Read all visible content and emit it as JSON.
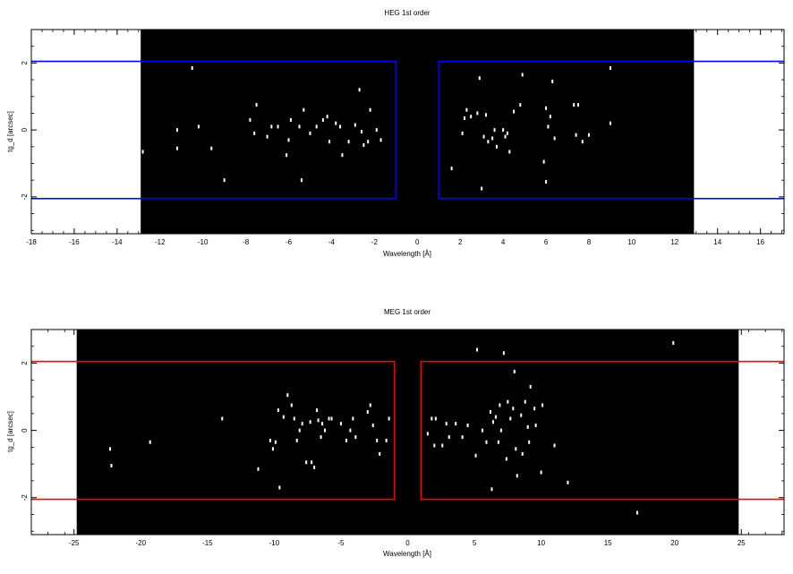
{
  "chart_data": [
    {
      "type": "scatter",
      "title": "HEG 1st order",
      "xlabel": "Wavelength [Å]",
      "ylabel": "tg_d [arcsec]",
      "xlim": [
        -18,
        17.1
      ],
      "ylim": [
        -3.1,
        3.0
      ],
      "data_region_x": [
        -12.9,
        12.9
      ],
      "xticks": [
        "-18",
        "-16",
        "-14",
        "-12",
        "-10",
        "-8",
        "-6",
        "-4",
        "-2",
        "0",
        "2",
        "4",
        "6",
        "8",
        "10",
        "12",
        "14",
        "16"
      ],
      "yticks": [
        "-2",
        "0",
        "2"
      ],
      "regions": [
        {
          "x": [
            -30,
            -1.0
          ],
          "y": [
            -2.05,
            2.05
          ],
          "color": "#0000ff"
        },
        {
          "x": [
            1.0,
            30
          ],
          "y": [
            -2.05,
            2.05
          ],
          "color": "#0000ff"
        }
      ],
      "point_color": "#ffffff",
      "points": [
        [
          -12.8,
          -0.65
        ],
        [
          -11.2,
          0.0
        ],
        [
          -11.2,
          -0.55
        ],
        [
          -10.5,
          1.85
        ],
        [
          -10.2,
          0.1
        ],
        [
          -9.6,
          -0.55
        ],
        [
          -9.0,
          -1.5
        ],
        [
          -7.8,
          0.3
        ],
        [
          -7.6,
          -0.1
        ],
        [
          -7.5,
          0.75
        ],
        [
          -7.0,
          -0.2
        ],
        [
          -6.8,
          0.1
        ],
        [
          -6.5,
          0.1
        ],
        [
          -6.1,
          -0.75
        ],
        [
          -6.0,
          -0.3
        ],
        [
          -5.9,
          0.3
        ],
        [
          -5.5,
          0.1
        ],
        [
          -5.4,
          -1.5
        ],
        [
          -5.3,
          0.6
        ],
        [
          -5.0,
          -0.1
        ],
        [
          -4.7,
          0.1
        ],
        [
          -4.4,
          0.3
        ],
        [
          -4.2,
          0.4
        ],
        [
          -4.1,
          -0.35
        ],
        [
          -3.8,
          0.2
        ],
        [
          -3.6,
          0.1
        ],
        [
          -3.5,
          -0.75
        ],
        [
          -3.2,
          -0.35
        ],
        [
          -2.9,
          0.15
        ],
        [
          -2.7,
          1.2
        ],
        [
          -2.6,
          -0.05
        ],
        [
          -2.5,
          -0.45
        ],
        [
          -2.3,
          -0.35
        ],
        [
          -2.2,
          0.6
        ],
        [
          -1.9,
          0.0
        ],
        [
          -1.7,
          -0.3
        ],
        [
          1.6,
          -1.15
        ],
        [
          2.1,
          -0.1
        ],
        [
          2.2,
          0.35
        ],
        [
          2.3,
          0.6
        ],
        [
          2.5,
          0.4
        ],
        [
          2.8,
          0.5
        ],
        [
          2.9,
          1.55
        ],
        [
          3.0,
          -1.75
        ],
        [
          3.1,
          -0.2
        ],
        [
          3.2,
          0.45
        ],
        [
          3.3,
          -0.35
        ],
        [
          3.5,
          -0.25
        ],
        [
          3.6,
          0.0
        ],
        [
          3.7,
          -0.5
        ],
        [
          4.0,
          0.0
        ],
        [
          4.1,
          -0.2
        ],
        [
          4.2,
          -0.1
        ],
        [
          4.3,
          -0.65
        ],
        [
          4.5,
          0.55
        ],
        [
          4.8,
          0.75
        ],
        [
          4.9,
          1.65
        ],
        [
          5.9,
          -0.95
        ],
        [
          6.0,
          0.65
        ],
        [
          6.0,
          -1.55
        ],
        [
          6.1,
          0.1
        ],
        [
          6.2,
          0.4
        ],
        [
          6.3,
          1.45
        ],
        [
          6.4,
          -0.25
        ],
        [
          7.3,
          0.75
        ],
        [
          7.4,
          -0.15
        ],
        [
          7.5,
          0.75
        ],
        [
          7.7,
          -0.35
        ],
        [
          8.0,
          -0.15
        ],
        [
          9.0,
          1.85
        ],
        [
          9.0,
          0.2
        ]
      ]
    },
    {
      "type": "scatter",
      "title": "MEG 1st order",
      "xlabel": "Wavelength [Å]",
      "ylabel": "tg_d [arcsec]",
      "xlim": [
        -28.2,
        28.2
      ],
      "ylim": [
        -3.1,
        3.0
      ],
      "data_region_x": [
        -24.8,
        24.8
      ],
      "xticks": [
        "-25",
        "-20",
        "-15",
        "-10",
        "-5",
        "0",
        "5",
        "10",
        "15",
        "20",
        "25"
      ],
      "yticks": [
        "-2",
        "0",
        "2"
      ],
      "regions": [
        {
          "x": [
            -40,
            -1.0
          ],
          "y": [
            -2.05,
            2.05
          ],
          "color": "#ff0000"
        },
        {
          "x": [
            1.0,
            40
          ],
          "y": [
            -2.05,
            2.05
          ],
          "color": "#ff0000"
        }
      ],
      "point_color": "#ffffff",
      "points": [
        [
          -22.3,
          -0.55
        ],
        [
          -22.2,
          -1.05
        ],
        [
          -19.3,
          -0.35
        ],
        [
          -13.9,
          0.35
        ],
        [
          -11.2,
          -1.15
        ],
        [
          -10.3,
          -0.3
        ],
        [
          -10.1,
          -0.55
        ],
        [
          -9.9,
          -0.35
        ],
        [
          -9.7,
          0.6
        ],
        [
          -9.6,
          -1.7
        ],
        [
          -9.3,
          0.4
        ],
        [
          -9.0,
          1.05
        ],
        [
          -8.7,
          0.75
        ],
        [
          -8.5,
          0.35
        ],
        [
          -8.3,
          -0.3
        ],
        [
          -8.1,
          0.0
        ],
        [
          -7.9,
          0.2
        ],
        [
          -7.6,
          -0.95
        ],
        [
          -7.3,
          0.25
        ],
        [
          -7.2,
          -0.95
        ],
        [
          -7.0,
          -1.1
        ],
        [
          -6.8,
          0.6
        ],
        [
          -6.7,
          0.3
        ],
        [
          -6.5,
          -0.2
        ],
        [
          -6.4,
          0.2
        ],
        [
          -6.2,
          0.0
        ],
        [
          -5.9,
          0.35
        ],
        [
          -5.7,
          0.35
        ],
        [
          -5.0,
          0.2
        ],
        [
          -4.6,
          -0.3
        ],
        [
          -4.3,
          0.0
        ],
        [
          -4.1,
          0.35
        ],
        [
          -3.9,
          -0.2
        ],
        [
          -3.0,
          0.55
        ],
        [
          -2.8,
          0.75
        ],
        [
          -2.6,
          0.15
        ],
        [
          -2.3,
          -0.3
        ],
        [
          -2.1,
          -0.7
        ],
        [
          -1.6,
          -0.3
        ],
        [
          -1.4,
          0.35
        ],
        [
          1.5,
          -0.1
        ],
        [
          1.8,
          0.35
        ],
        [
          2.0,
          -0.45
        ],
        [
          2.1,
          0.35
        ],
        [
          2.6,
          -0.45
        ],
        [
          2.9,
          0.2
        ],
        [
          3.1,
          -0.2
        ],
        [
          3.6,
          0.2
        ],
        [
          4.1,
          -0.2
        ],
        [
          4.5,
          0.15
        ],
        [
          5.1,
          -0.75
        ],
        [
          5.2,
          2.4
        ],
        [
          5.6,
          0.0
        ],
        [
          5.9,
          -0.35
        ],
        [
          6.2,
          0.55
        ],
        [
          6.3,
          -1.75
        ],
        [
          6.4,
          0.25
        ],
        [
          6.6,
          0.4
        ],
        [
          6.8,
          -0.35
        ],
        [
          6.9,
          0.75
        ],
        [
          7.0,
          0.0
        ],
        [
          7.2,
          2.3
        ],
        [
          7.4,
          -0.85
        ],
        [
          7.5,
          0.85
        ],
        [
          7.7,
          0.35
        ],
        [
          7.9,
          0.65
        ],
        [
          8.0,
          1.75
        ],
        [
          8.1,
          -0.55
        ],
        [
          8.2,
          -1.35
        ],
        [
          8.5,
          0.45
        ],
        [
          8.6,
          -0.7
        ],
        [
          8.8,
          0.85
        ],
        [
          9.0,
          0.1
        ],
        [
          9.1,
          -0.35
        ],
        [
          9.2,
          1.3
        ],
        [
          9.5,
          0.65
        ],
        [
          9.6,
          0.15
        ],
        [
          10.0,
          -1.25
        ],
        [
          10.1,
          0.75
        ],
        [
          11.0,
          -0.45
        ],
        [
          12.0,
          -1.55
        ],
        [
          17.2,
          -2.45
        ],
        [
          19.9,
          2.6
        ]
      ]
    }
  ]
}
